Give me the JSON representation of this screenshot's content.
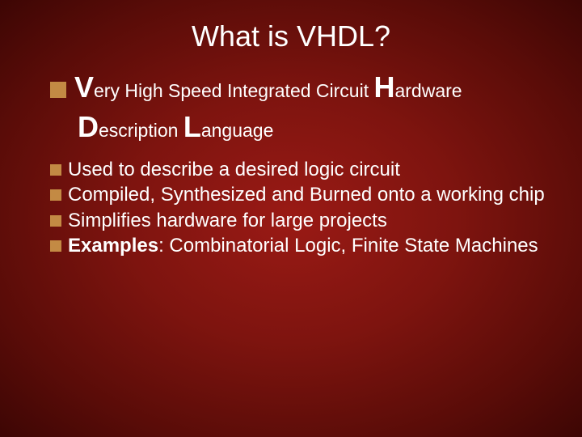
{
  "title": "What is VHDL?",
  "definition": {
    "V": "V",
    "ery": "ery",
    "mid": " High Speed Integrated Circuit ",
    "H": "H",
    "ardware": "ardware",
    "D": "D",
    "escription": "escription",
    "L": "L",
    "anguage": "anguage"
  },
  "items": [
    {
      "prefix": "",
      "bold": "",
      "text": "Used to describe a desired logic circuit"
    },
    {
      "prefix": "",
      "bold": "",
      "text": "Compiled, Synthesized and Burned onto a working chip"
    },
    {
      "prefix": "",
      "bold": "",
      "text": "Simplifies hardware for large projects"
    },
    {
      "prefix": "",
      "bold": "Examples",
      "text": ": Combinatorial Logic, Finite State Machines"
    }
  ],
  "colors": {
    "bullet": "#c38a44",
    "text": "#ffffff",
    "bg_center": "#9a1a15",
    "bg_edge": "#3d0604"
  }
}
